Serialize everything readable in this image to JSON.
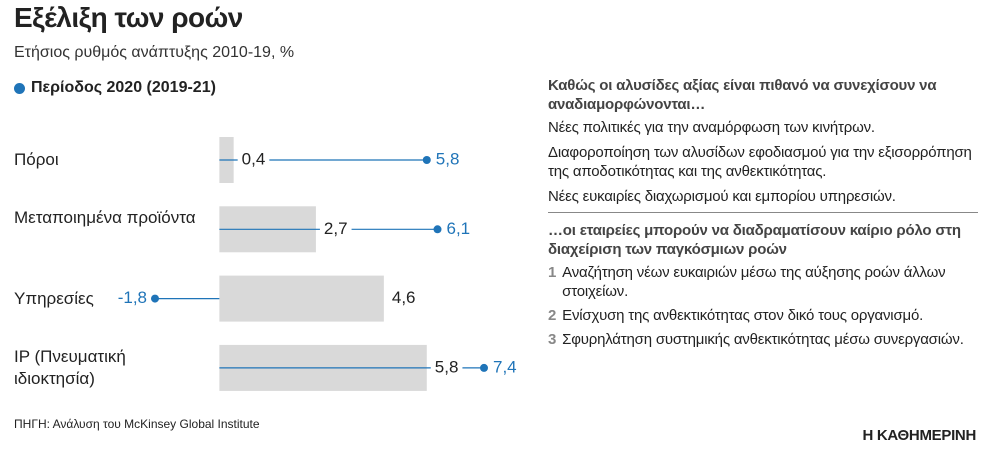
{
  "chart_data": {
    "type": "dot-bar",
    "title": "Εξέλιξη των ροών",
    "subtitle": "Ετήσιος ρυθμός ανάπτυξης 2010-19, %",
    "categories": [
      "Πόροι",
      "Μεταποιημένα προϊόντα",
      "Υπηρεσίες",
      "IP (Πνευματική ιδιοκτησία)"
    ],
    "series": [
      {
        "color": "#d9d9d9",
        "values": [
          0.4,
          2.7,
          4.6,
          5.8
        ],
        "value_labels": [
          "0,4",
          "2,7",
          "4,6",
          "5,8"
        ]
      },
      {
        "name": "Περίοδος 2020 (2019-21)",
        "color": "#1f74b8",
        "values": [
          5.8,
          6.1,
          -1.8,
          7.4
        ],
        "value_labels": [
          "5,8",
          "6,1",
          "-1,8",
          "7,4"
        ]
      }
    ],
    "source": "ΠΗΓΗ: Ανάλυση του McKinsey Global Institute"
  },
  "sidebar": {
    "section1": {
      "heading": "Καθώς οι αλυσίδες αξίας είναι πιθανό να συνεχίσουν να αναδιαμορφώνονται…",
      "items": [
        "Νέες πολιτικές για την αναμόρφωση των κινήτρων.",
        "Διαφοροποίηση των αλυσίδων εφοδιασμού για την εξισορρόπηση της αποδοτικότητας και της ανθεκτικότητας.",
        "Νέες ευκαιρίες διαχωρισμού και εμπορίου υπηρεσιών."
      ]
    },
    "section2": {
      "heading": "…οι εταιρείες μπορούν να διαδραματίσουν καίριο ρόλο στη διαχείριση των παγκόσμιων ροών",
      "items": [
        {
          "number": "1",
          "text": "Αναζήτηση νέων ευκαιριών μέσω της αύξησης ροών άλλων στοιχείων."
        },
        {
          "number": "2",
          "text": "Ενίσχυση της ανθεκτικότητας στον δικό τους οργανισμό."
        },
        {
          "number": "3",
          "text": "Σφυρηλάτηση συστημικής ανθεκτικότητας μέσω συνεργασιών."
        }
      ]
    }
  },
  "brand": "Η ΚΑΘΗΜΕΡΙΝΗ"
}
